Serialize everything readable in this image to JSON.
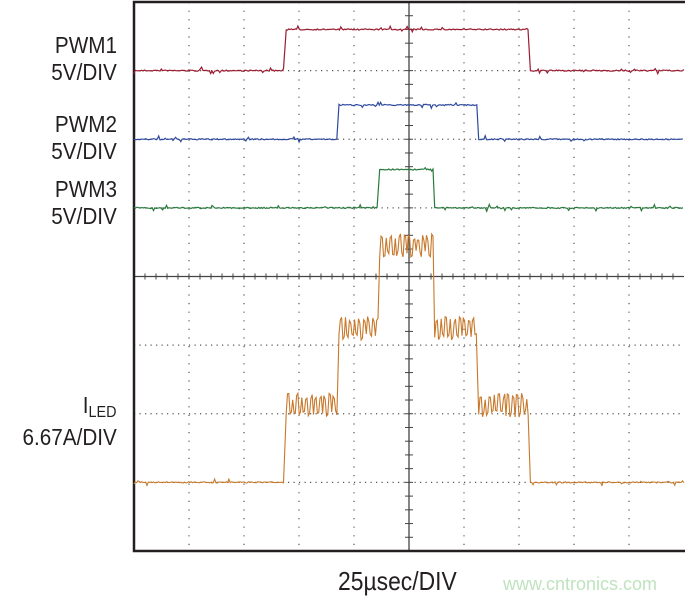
{
  "chart_data": {
    "type": "line",
    "title": "",
    "xlabel": "25µsec/DIV",
    "x_units": "µs",
    "xlim": [
      0,
      250
    ],
    "grid": true,
    "grid_divisions": {
      "x": 10,
      "y": 8
    },
    "series": [
      {
        "name": "PWM1",
        "scale": "5V/DIV",
        "units": "V",
        "color": "#9b1b30",
        "steps": [
          [
            0,
            0
          ],
          [
            68.5,
            3
          ],
          [
            179.5,
            0
          ],
          [
            250,
            0
          ]
        ]
      },
      {
        "name": "PWM2",
        "scale": "5V/DIV",
        "units": "V",
        "color": "#2e4a9e",
        "steps": [
          [
            0,
            0
          ],
          [
            92.5,
            2.5
          ],
          [
            156,
            0
          ],
          [
            250,
            0
          ]
        ]
      },
      {
        "name": "PWM3",
        "scale": "5V/DIV",
        "units": "V",
        "color": "#2a7a3f",
        "steps": [
          [
            0,
            0
          ],
          [
            111,
            2.8
          ],
          [
            136,
            0
          ],
          [
            250,
            0
          ]
        ]
      },
      {
        "name": "ILED",
        "label_main": "I",
        "label_sub": "LED",
        "scale": "6.67A/DIV",
        "units": "A",
        "color": "#c7782a",
        "steps": [
          [
            0,
            0
          ],
          [
            68.5,
            7.5
          ],
          [
            92.5,
            15
          ],
          [
            111,
            23
          ],
          [
            136,
            15
          ],
          [
            156,
            7.5
          ],
          [
            179.5,
            0
          ],
          [
            250,
            0
          ]
        ]
      }
    ]
  },
  "watermark": "www.cntronics.com"
}
